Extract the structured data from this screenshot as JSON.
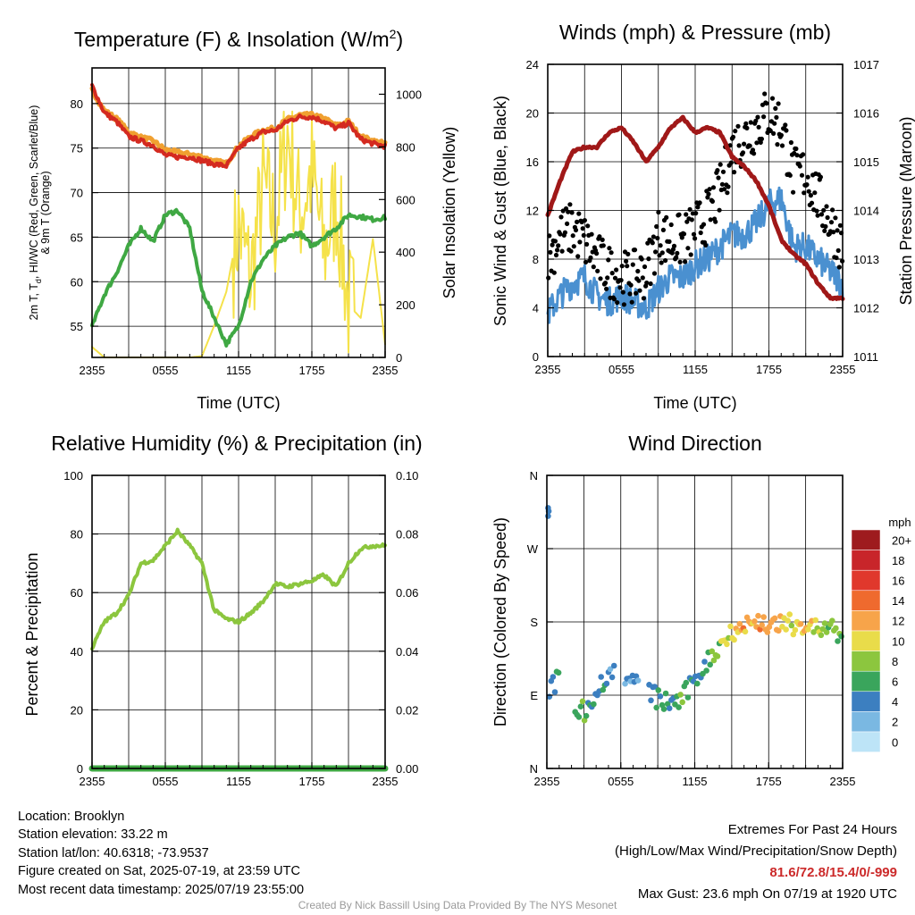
{
  "chart_data": [
    {
      "type": "line",
      "title": "Temperature (F) & Insolation (W/m²)",
      "title_main": "Temperature (F) & Insolation (W/m",
      "title_sup": "2",
      "title_end": ")",
      "xlabel": "Time (UTC)",
      "ylabel_line1": "2m T, T",
      "ylabel_sub": "d",
      "ylabel_line1_end": ", HI/WC (Red, Green, Scarlet/Blue)",
      "ylabel_line2": "& 9m T (Orange)",
      "ylabel_right": "Solar Insolation (Yellow)",
      "xticks": [
        "2355",
        "0555",
        "1155",
        "1755",
        "2355"
      ],
      "ylim": [
        51.5,
        84
      ],
      "yticks": [
        55,
        60,
        65,
        70,
        75,
        80
      ],
      "ylim_right": [
        0,
        1100
      ],
      "yticks_right": [
        0,
        200,
        400,
        600,
        800,
        1000
      ],
      "x_hours": [
        0,
        1,
        2,
        3,
        4,
        5,
        6,
        7,
        8,
        9,
        10,
        11,
        12,
        13,
        14,
        15,
        16,
        17,
        18,
        19,
        20,
        21,
        22,
        23,
        24
      ],
      "series": [
        {
          "color": "#d42a20",
          "values": [
            82,
            79,
            78,
            76.3,
            75.8,
            75.3,
            74.2,
            74,
            74,
            73.6,
            73.2,
            73,
            75,
            76,
            76.8,
            77,
            78,
            78.5,
            78.5,
            78,
            77.2,
            77.8,
            76,
            75.5,
            75.2
          ]
        },
        {
          "color": "#f0a030",
          "values": [
            81.5,
            79.2,
            78.3,
            76.8,
            76.2,
            75.8,
            74.8,
            74.5,
            74.3,
            74,
            73.5,
            73.3,
            75.2,
            76.3,
            77,
            77.2,
            78.2,
            78.7,
            78.7,
            78.3,
            77.5,
            78,
            76.3,
            75.8,
            75.5
          ]
        },
        {
          "color": "#3fa843",
          "values": [
            55,
            58.5,
            61,
            64,
            66,
            64.5,
            67.5,
            68,
            66,
            59,
            56,
            53,
            55,
            60,
            62.5,
            64,
            65,
            65.5,
            64,
            65,
            66,
            67.5,
            67.3,
            67,
            67.2
          ]
        },
        {
          "color": "#f5e24a",
          "axis": "right",
          "values": [
            40,
            0,
            0,
            0,
            0,
            0,
            0,
            0,
            0,
            5,
            120,
            250,
            500,
            300,
            650,
            500,
            850,
            550,
            700,
            400,
            600,
            200,
            150,
            450,
            50
          ]
        }
      ]
    },
    {
      "type": "line",
      "title": "Winds (mph) & Pressure (mb)",
      "xlabel": "Time (UTC)",
      "ylabel": "Sonic Wind & Gust (Blue, Black)",
      "ylabel_right": "Station Pressure (Maroon)",
      "xticks": [
        "2355",
        "0555",
        "1155",
        "1755",
        "2355"
      ],
      "ylim": [
        0,
        24
      ],
      "yticks": [
        0,
        4,
        8,
        12,
        16,
        20,
        24
      ],
      "ylim_right": [
        1011,
        1017
      ],
      "yticks_right": [
        1011,
        1012,
        1013,
        1014,
        1015,
        1016,
        1017
      ],
      "x_hours": [
        0,
        1,
        2,
        3,
        4,
        5,
        6,
        7,
        8,
        9,
        10,
        11,
        12,
        13,
        14,
        15,
        16,
        17,
        18,
        19,
        20,
        21,
        22,
        23,
        24
      ],
      "series": [
        {
          "color": "#4a90d0",
          "values": [
            3.5,
            5,
            6,
            6.5,
            5,
            4.5,
            5,
            4.5,
            4,
            5.5,
            6.5,
            6.5,
            7.5,
            8,
            9,
            10,
            10,
            11,
            12.5,
            13,
            9,
            9,
            8,
            7,
            6
          ]
        },
        {
          "color": "#000000",
          "type": "scatter",
          "values": [
            8,
            10,
            10.5,
            9.5,
            8,
            7,
            6.5,
            6.5,
            7,
            10,
            9.5,
            9.5,
            10.5,
            11.5,
            13.5,
            17,
            18,
            19,
            20,
            19,
            15,
            15,
            13,
            11,
            9
          ]
        },
        {
          "color": "#a01818",
          "axis": "right",
          "values": [
            1013.9,
            1014.6,
            1015.2,
            1015.3,
            1015.3,
            1015.6,
            1015.7,
            1015.4,
            1015,
            1015.3,
            1015.7,
            1015.9,
            1015.6,
            1015.7,
            1015.6,
            1015.1,
            1014.9,
            1014.6,
            1014.1,
            1013.4,
            1013.1,
            1012.9,
            1012.5,
            1012.2,
            1012.2
          ]
        }
      ]
    },
    {
      "type": "line",
      "title": "Relative Humidity (%) & Precipitation (in)",
      "ylabel": "Percent & Precipitation",
      "xticks": [
        "2355",
        "0555",
        "1155",
        "1755",
        "2355"
      ],
      "ylim": [
        0,
        100
      ],
      "yticks": [
        0,
        20,
        40,
        60,
        80,
        100
      ],
      "ylim_right": [
        0,
        0.1
      ],
      "yticks_right": [
        "0.00",
        "0.02",
        "0.04",
        "0.06",
        "0.08",
        "0.10"
      ],
      "x_hours": [
        0,
        1,
        2,
        3,
        4,
        5,
        6,
        7,
        8,
        9,
        10,
        11,
        12,
        13,
        14,
        15,
        16,
        17,
        18,
        19,
        20,
        21,
        22,
        23,
        24
      ],
      "series": [
        {
          "color": "#8cc63e",
          "values": [
            41,
            50,
            53,
            59,
            70,
            71,
            76,
            81,
            76,
            70,
            54,
            51,
            50,
            53,
            57,
            63,
            62,
            63,
            64,
            66,
            62,
            70,
            75,
            76,
            76
          ]
        },
        {
          "color": "#3fa843",
          "axis": "right",
          "values": [
            0,
            0,
            0,
            0,
            0,
            0,
            0,
            0,
            0,
            0,
            0,
            0,
            0,
            0,
            0,
            0,
            0,
            0,
            0,
            0,
            0,
            0,
            0,
            0,
            0
          ]
        }
      ]
    },
    {
      "type": "scatter",
      "title": "Wind Direction",
      "ylabel": "Direction (Colored By Speed)",
      "xticks": [
        "2355",
        "0555",
        "1155",
        "1755",
        "2355"
      ],
      "ylim": [
        0,
        360
      ],
      "yticks": [
        0,
        90,
        180,
        270,
        360
      ],
      "ytick_labels": [
        "N",
        "E",
        "S",
        "W",
        "N"
      ],
      "x_hours": [
        0,
        1,
        2,
        3,
        4,
        5,
        6,
        7,
        8,
        9,
        10,
        11,
        12,
        13,
        14,
        15,
        16,
        17,
        18,
        19,
        20,
        21,
        22,
        23,
        24
      ],
      "direction": [
        95,
        110,
        80,
        70,
        95,
        115,
        120,
        105,
        100,
        85,
        80,
        85,
        110,
        130,
        150,
        170,
        175,
        180,
        178,
        175,
        177,
        175,
        172,
        170,
        160
      ],
      "speed": [
        4,
        5,
        7,
        6,
        5,
        4,
        3,
        4,
        3,
        5,
        6,
        6,
        5,
        6,
        8,
        11,
        12,
        12,
        13,
        11,
        10,
        11,
        9,
        8,
        7
      ],
      "outliers": [
        {
          "hour": 0.1,
          "direction": 320
        },
        {
          "hour": 0.15,
          "direction": 316
        },
        {
          "hour": 0.1,
          "direction": 310
        }
      ],
      "legend": {
        "title": "mph",
        "labels": [
          "20+",
          "18",
          "16",
          "14",
          "12",
          "10",
          "8",
          "6",
          "4",
          "2",
          "0"
        ],
        "colors": [
          "#9e1b1e",
          "#c8252a",
          "#e0382c",
          "#ef6a2e",
          "#f7a44a",
          "#e9dc4a",
          "#8cc63e",
          "#3aa55c",
          "#3c7fc0",
          "#7ab8e2",
          "#bde4f7"
        ],
        "placement": "right"
      }
    }
  ],
  "info": {
    "location": "Location: Brooklyn",
    "elevation": "Station elevation: 33.22 m",
    "latlon": "Station lat/lon: 40.6318; -73.9537",
    "created": "Figure created on Sat, 2025-07-19, at 23:59 UTC",
    "recent": "Most recent data timestamp: 2025/07/19 23:55:00"
  },
  "extremes": {
    "title": "Extremes For Past 24 Hours",
    "subtitle": "(High/Low/Max Wind/Precipitation/Snow Depth)",
    "values": "81.6/72.8/15.4/0/-999",
    "gust": "Max Gust: 23.6 mph On 07/19 at 1920 UTC"
  },
  "credit": "Created By Nick Bassill Using Data Provided By The NYS Mesonet"
}
